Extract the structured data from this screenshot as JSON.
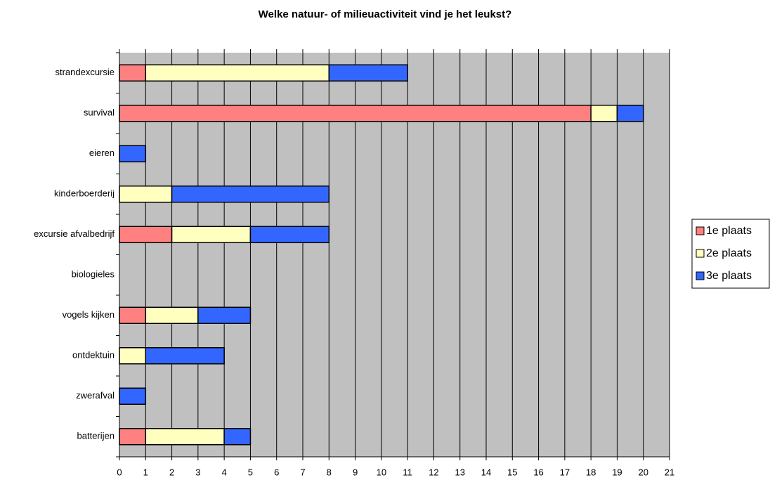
{
  "chart_data": {
    "type": "bar",
    "orientation": "horizontal",
    "stacked": true,
    "title": "Welke natuur- of milieuactiviteit vind je het leukst?",
    "categories": [
      "strandexcursie",
      "survival",
      "eieren",
      "kinderboerderij",
      "excursie afvalbedrijf",
      "biologieles",
      "vogels kijken",
      "ontdektuin",
      "zwerafval",
      "batterijen"
    ],
    "series": [
      {
        "name": "1e plaats",
        "color": "#ff8080",
        "values": [
          1,
          18,
          0,
          0,
          2,
          0,
          1,
          0,
          0,
          1
        ]
      },
      {
        "name": "2e plaats",
        "color": "#ffffc0",
        "values": [
          7,
          1,
          0,
          2,
          3,
          0,
          2,
          1,
          0,
          3
        ]
      },
      {
        "name": "3e plaats",
        "color": "#3366ff",
        "values": [
          3,
          1,
          1,
          6,
          3,
          0,
          2,
          3,
          1,
          1
        ]
      }
    ],
    "xlim": [
      0,
      21
    ],
    "xticks": [
      0,
      1,
      2,
      3,
      4,
      5,
      6,
      7,
      8,
      9,
      10,
      11,
      12,
      13,
      14,
      15,
      16,
      17,
      18,
      19,
      20,
      21
    ],
    "grid": true,
    "legend": "right",
    "plot_background": "#c0c0c0"
  }
}
